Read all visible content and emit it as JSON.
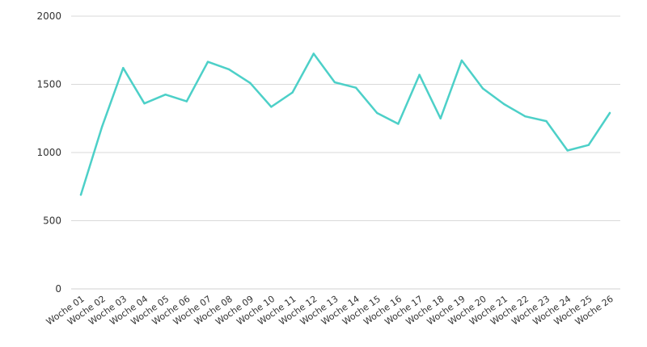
{
  "chart_data": {
    "type": "line",
    "title": "",
    "xlabel": "",
    "ylabel": "",
    "ylim": [
      0,
      2000
    ],
    "yticks": [
      "0",
      "500",
      "1000",
      "1500",
      "2000"
    ],
    "grid": true,
    "line_color": "#4dd0c8",
    "grid_color": "#d9d9d9",
    "categories": [
      "Woche 01",
      "Woche 02",
      "Woche 03",
      "Woche 04",
      "Woche 05",
      "Woche 06",
      "Woche 07",
      "Woche 08",
      "Woche 09",
      "Woche 10",
      "Woche 11",
      "Woche 12",
      "Woche 13",
      "Woche 14",
      "Woche 15",
      "Woche 16",
      "Woche 17",
      "Woche 18",
      "Woche 19",
      "Woche 20",
      "Woche 21",
      "Woche 22",
      "Woche 23",
      "Woche 24",
      "Woche 25",
      "Woche 26"
    ],
    "series": [
      {
        "values": [
          690,
          1190,
          1620,
          1360,
          1425,
          1375,
          1665,
          1610,
          1510,
          1335,
          1440,
          1725,
          1515,
          1475,
          1290,
          1210,
          1570,
          1250,
          1675,
          1470,
          1355,
          1265,
          1230,
          1015,
          1055,
          1290
        ]
      }
    ]
  }
}
